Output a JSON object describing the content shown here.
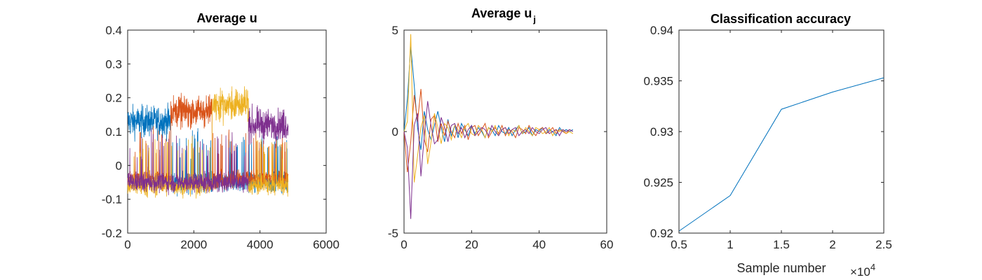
{
  "chart_data": [
    {
      "type": "line",
      "title": "Average u",
      "xlabel": "",
      "ylabel": "",
      "xlim": [
        0,
        6000
      ],
      "ylim": [
        -0.2,
        0.4
      ],
      "xticks": [
        "0",
        "2000",
        "4000",
        "6000"
      ],
      "yticks": [
        "-0.2",
        "-0.1",
        "0",
        "0.1",
        "0.2",
        "0.3",
        "0.4"
      ],
      "grid": false,
      "note_series_structure": "4 noisy series over x = 0..4850; in each of four segments (0-1300, 1300-2550, 2550-3650, 3650-4850) one series is high (~0.13-0.18) while the others stay low",
      "segments": [
        {
          "x": [
            0,
            1300
          ],
          "high_series": 0
        },
        {
          "x": [
            1300,
            2550
          ],
          "high_series": 1
        },
        {
          "x": [
            2550,
            3650
          ],
          "high_series": 2
        },
        {
          "x": [
            3650,
            4850
          ],
          "high_series": 3
        }
      ],
      "series": [
        {
          "color": "#0072BD",
          "high_mean": 0.13,
          "low_mean": -0.05
        },
        {
          "color": "#D95319",
          "high_mean": 0.16,
          "low_mean": -0.04
        },
        {
          "color": "#EDB120",
          "high_mean": 0.18,
          "low_mean": -0.06
        },
        {
          "color": "#7E2F8E",
          "high_mean": 0.12,
          "low_mean": -0.05
        }
      ]
    },
    {
      "type": "line",
      "title": "Average u",
      "title_subscript": "j",
      "xlabel": "",
      "ylabel": "",
      "xlim": [
        0,
        60
      ],
      "ylim": [
        -5,
        5
      ],
      "xticks": [
        "0",
        "20",
        "40",
        "60"
      ],
      "yticks": [
        "-5",
        "0",
        "5"
      ],
      "grid": false,
      "x": [
        0,
        1,
        2,
        3,
        4,
        5,
        6,
        7,
        8,
        9,
        10,
        11,
        12,
        13,
        14,
        15,
        16,
        17,
        18,
        19,
        20,
        21,
        22,
        23,
        24,
        25,
        26,
        27,
        28,
        29,
        30,
        31,
        32,
        33,
        34,
        35,
        36,
        37,
        38,
        39,
        40,
        41,
        42,
        43,
        44,
        45,
        46,
        47,
        48,
        49,
        50
      ],
      "series": [
        {
          "color": "#0072BD",
          "values": [
            0.0,
            1.6,
            4.2,
            2.3,
            0.2,
            -0.9,
            1.0,
            0.1,
            -0.4,
            0.3,
            1.0,
            0.2,
            -0.5,
            0.6,
            -0.2,
            0.3,
            -0.3,
            0.4,
            0.1,
            -0.2,
            0.3,
            -0.1,
            0.2,
            0.0,
            -0.3,
            0.2,
            0.1,
            -0.2,
            0.3,
            0.0,
            -0.1,
            0.2,
            -0.2,
            0.1,
            0.3,
            -0.1,
            0.0,
            0.2,
            -0.2,
            0.1,
            0.0,
            0.2,
            -0.1,
            0.1,
            0.0,
            -0.2,
            0.2,
            0.0,
            0.1,
            0.0,
            0.1
          ]
        },
        {
          "color": "#D95319",
          "values": [
            0.0,
            -2.0,
            -0.5,
            1.8,
            0.5,
            2.1,
            -0.4,
            -1.0,
            0.6,
            0.8,
            -0.5,
            0.4,
            -0.2,
            0.5,
            0.0,
            -0.3,
            0.4,
            -0.1,
            0.3,
            -0.4,
            0.2,
            0.3,
            -0.2,
            0.1,
            0.4,
            -0.3,
            0.0,
            0.2,
            -0.1,
            0.3,
            -0.2,
            0.1,
            0.0,
            -0.3,
            0.2,
            0.1,
            -0.1,
            0.3,
            0.0,
            -0.2,
            0.1,
            0.2,
            -0.1,
            0.0,
            0.2,
            -0.1,
            0.1,
            0.0,
            -0.1,
            0.1,
            0.0
          ]
        },
        {
          "color": "#EDB120",
          "values": [
            0.0,
            0.5,
            4.8,
            -2.5,
            -1.2,
            0.2,
            0.8,
            -1.6,
            -0.5,
            0.9,
            0.2,
            -0.6,
            0.4,
            0.2,
            -0.4,
            0.3,
            0.1,
            -0.3,
            0.2,
            0.4,
            -0.1,
            -0.2,
            0.3,
            0.1,
            -0.3,
            0.2,
            0.0,
            0.3,
            -0.2,
            0.1,
            0.2,
            -0.2,
            0.1,
            0.0,
            0.3,
            -0.1,
            0.2,
            0.0,
            -0.2,
            0.2,
            0.1,
            -0.1,
            0.0,
            0.2,
            -0.2,
            0.1,
            0.0,
            0.1,
            -0.1,
            0.0,
            -0.1
          ]
        },
        {
          "color": "#7E2F8E",
          "values": [
            0.0,
            -0.8,
            -4.3,
            0.3,
            0.9,
            -2.2,
            -0.2,
            1.5,
            0.3,
            -0.6,
            -0.4,
            0.7,
            0.2,
            -0.5,
            0.3,
            0.4,
            -0.1,
            0.2,
            -0.3,
            0.1,
            0.3,
            -0.2,
            0.0,
            0.2,
            0.1,
            -0.2,
            0.3,
            0.0,
            -0.2,
            0.1,
            0.2,
            -0.1,
            0.1,
            0.2,
            -0.2,
            0.0,
            0.1,
            -0.1,
            0.2,
            0.0,
            -0.1,
            0.1,
            0.2,
            -0.1,
            0.0,
            0.1,
            -0.2,
            0.1,
            0.0,
            0.1,
            0.0
          ]
        }
      ]
    },
    {
      "type": "line",
      "title": "Classification accuracy",
      "xlabel": "Sample number",
      "x_exponent_label": "×10",
      "x_exponent_power": "4",
      "ylabel": "",
      "xlim": [
        0.5,
        2.5
      ],
      "ylim": [
        0.92,
        0.94
      ],
      "xticks": [
        "0.5",
        "1",
        "1.5",
        "2",
        "2.5"
      ],
      "yticks": [
        "0.92",
        "0.925",
        "0.93",
        "0.935",
        "0.94"
      ],
      "grid": false,
      "x": [
        0.5,
        1.0,
        1.5,
        2.0,
        2.5
      ],
      "series": [
        {
          "color": "#0072BD",
          "values": [
            0.9202,
            0.9237,
            0.9322,
            0.9339,
            0.9353
          ]
        }
      ]
    }
  ]
}
